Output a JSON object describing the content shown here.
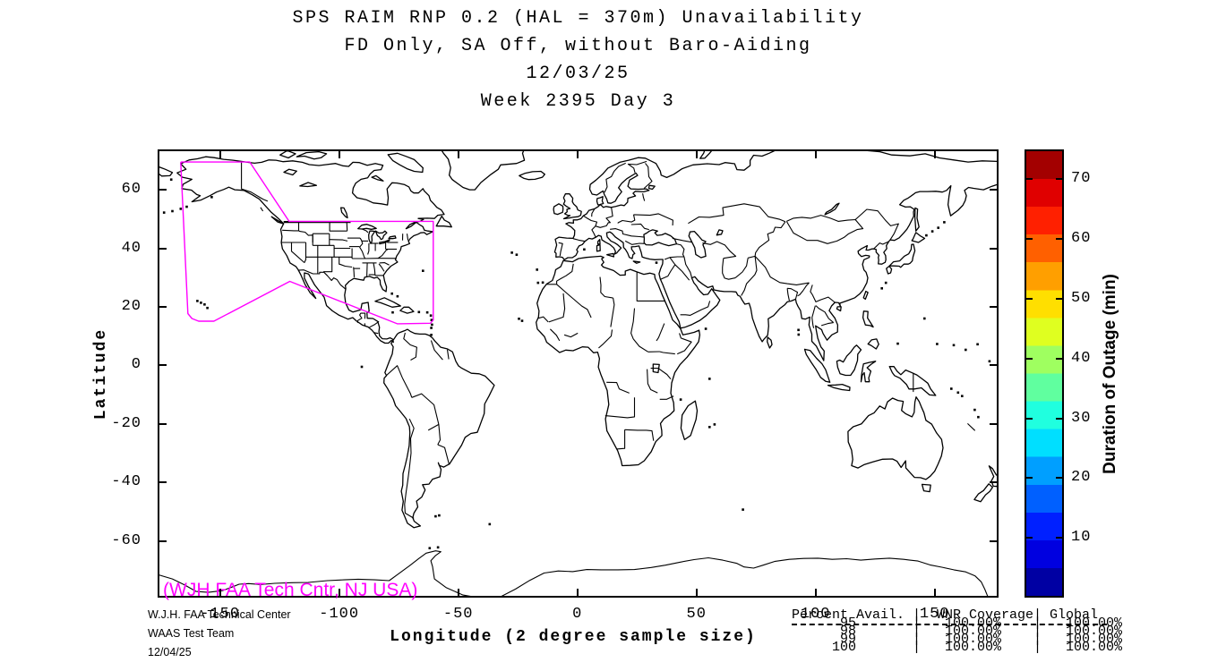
{
  "title": {
    "line1": "SPS RAIM RNP 0.2 (HAL = 370m) Unavailability",
    "line2": "FD Only, SA Off, without Baro-Aiding",
    "line3": "12/03/25",
    "line4": "Week 2395 Day 3"
  },
  "chart_data": {
    "type": "map",
    "subtype": "world-outline-outage-map",
    "xlabel": "Longitude (2 degree sample size)",
    "ylabel": "Latitude",
    "xlim": [
      -176.2,
      176.8
    ],
    "ylim": [
      -79.4,
      73.8
    ],
    "x_ticks": [
      -150,
      -100,
      -50,
      0,
      50,
      100,
      150
    ],
    "y_ticks": [
      60,
      40,
      20,
      0,
      -20,
      -40,
      -60
    ],
    "grid": false,
    "outage_cells": [],
    "colorbar": {
      "label": "Duration of Outage (min)",
      "range": [
        0,
        75
      ],
      "ticks": [
        10,
        20,
        30,
        40,
        50,
        60,
        70
      ],
      "colormap_name": "jet",
      "colormap_bottom_to_top": [
        "#0000a3",
        "#0000e0",
        "#0020ff",
        "#0060ff",
        "#009fff",
        "#00dfff",
        "#20ffdf",
        "#60ff9f",
        "#9fff60",
        "#dfff20",
        "#ffdf00",
        "#ff9f00",
        "#ff6000",
        "#ff2000",
        "#e00000",
        "#a30000"
      ]
    },
    "service_volume": {
      "name": "WAAS service volume outline",
      "color": "#ff00ff",
      "vertices_lonlat": [
        [
          -166.5,
          69.5
        ],
        [
          -137.5,
          69.5
        ],
        [
          -121,
          49.2
        ],
        [
          -60.5,
          49.2
        ],
        [
          -60.5,
          15.5
        ],
        [
          -61.7,
          14.4
        ],
        [
          -75.6,
          14.2
        ],
        [
          -120.7,
          28.7
        ],
        [
          -152.6,
          15.1
        ],
        [
          -159,
          15.1
        ],
        [
          -161.8,
          16.0
        ],
        [
          -163.5,
          17.7
        ],
        [
          -166.5,
          69.5
        ]
      ]
    }
  },
  "annotations": {
    "site_note": "(WJH FAA Tech Cntr, NJ USA)",
    "credit_line1": "W.J.H. FAA Technical Center",
    "credit_line2": "WAAS Test Team",
    "credit_line3": "12/04/25"
  },
  "coverage_table": {
    "header": "Percent Avail. |  WNR Coverage| Global",
    "rows": [
      "      95       |   100.00%    |   100.00%",
      "      98       |   100.00%    |   100.00%",
      "      99       |   100.00%    |   100.00%",
      "     100       |   100.00%    |   100.00%"
    ]
  },
  "colors": {
    "background": "#ffffff",
    "land_outline": "#000000",
    "service_volume": "#ff00ff",
    "annotation_magenta": "#ff00ff"
  }
}
